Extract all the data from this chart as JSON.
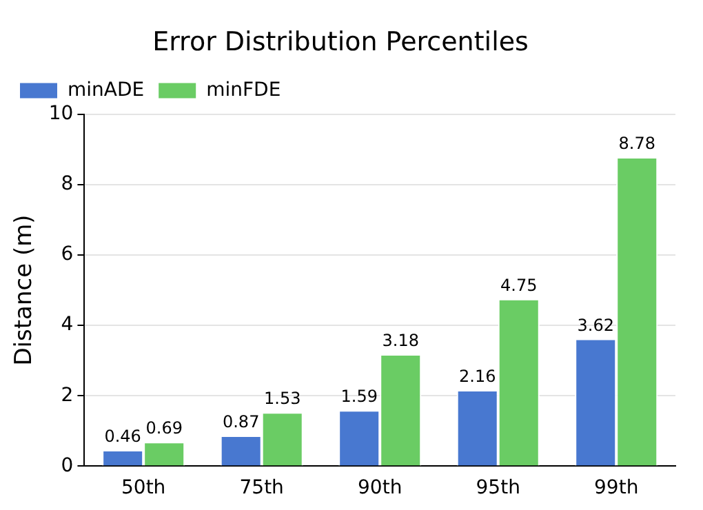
{
  "chart_data": {
    "type": "bar",
    "title": "Error Distribution Percentiles",
    "ylabel": "Distance (m)",
    "categories": [
      "50th",
      "75th",
      "90th",
      "95th",
      "99th"
    ],
    "series": [
      {
        "name": "minADE",
        "color": "#4878d0",
        "values": [
          0.46,
          0.87,
          1.59,
          2.16,
          3.62
        ]
      },
      {
        "name": "minFDE",
        "color": "#6acc64",
        "values": [
          0.69,
          1.53,
          3.18,
          4.75,
          8.78
        ]
      }
    ],
    "ylim": [
      0,
      10
    ],
    "yticks": [
      0,
      2,
      4,
      6,
      8,
      10
    ],
    "grid": "y",
    "legend": "top left",
    "data_labels": true
  }
}
